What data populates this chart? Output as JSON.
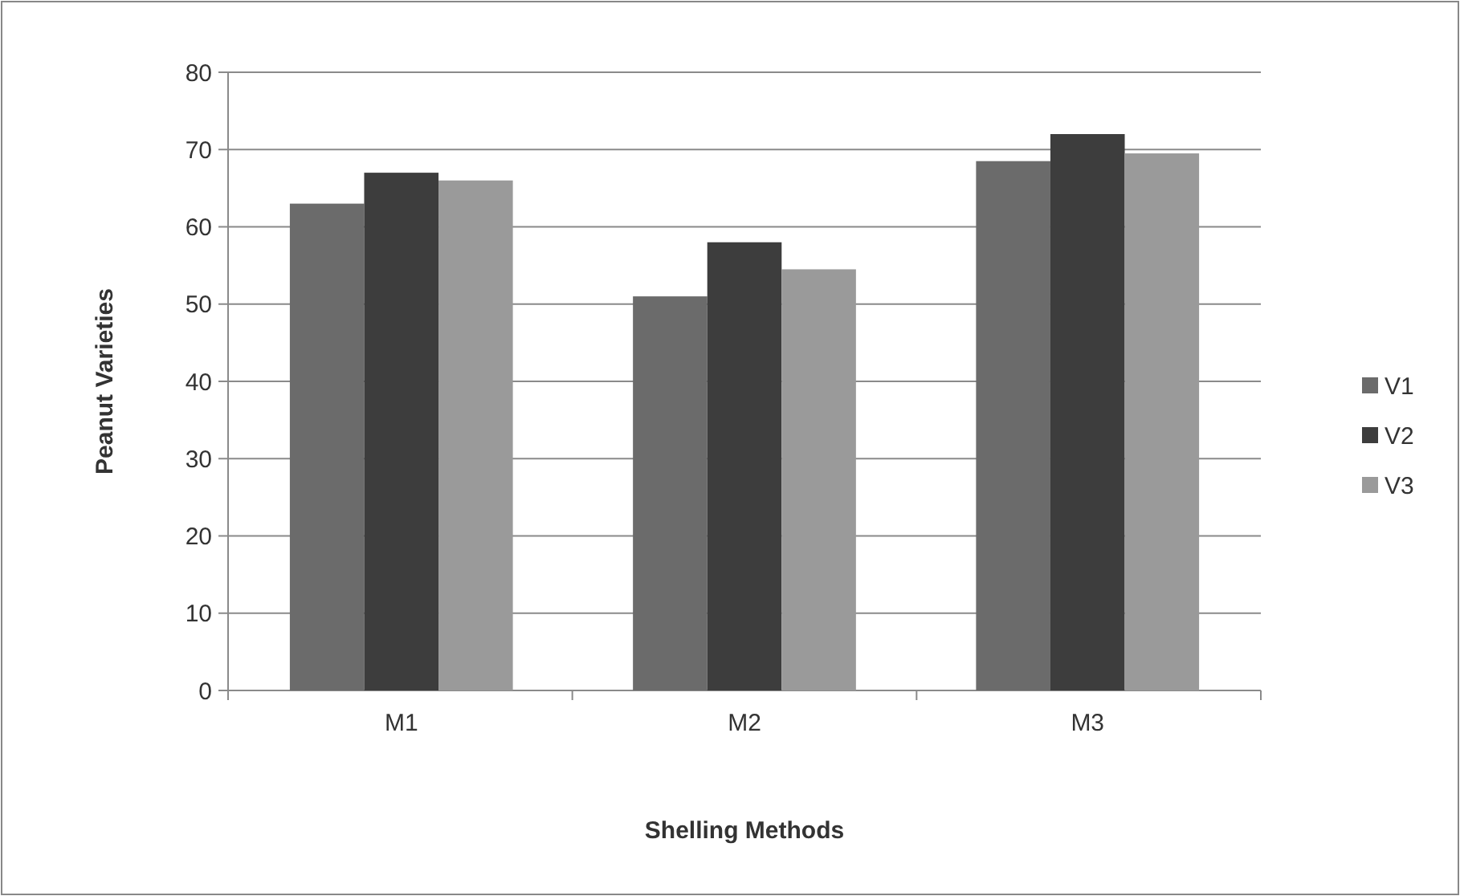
{
  "chart_data": {
    "type": "bar",
    "xlabel": "Shelling Methods",
    "ylabel": "Peanut Varieties",
    "categories": [
      "M1",
      "M2",
      "M3"
    ],
    "series": [
      {
        "name": "V1",
        "color": "#6b6b6b",
        "values": [
          63,
          51,
          68.5
        ]
      },
      {
        "name": "V2",
        "color": "#3d3d3d",
        "values": [
          67,
          58,
          72
        ]
      },
      {
        "name": "V3",
        "color": "#9a9a9a",
        "values": [
          66,
          54.5,
          69.5
        ]
      }
    ],
    "ylim": [
      0,
      80
    ],
    "yticks": [
      0,
      10,
      20,
      30,
      40,
      50,
      60,
      70,
      80
    ],
    "grid": "y",
    "legend": "right"
  }
}
